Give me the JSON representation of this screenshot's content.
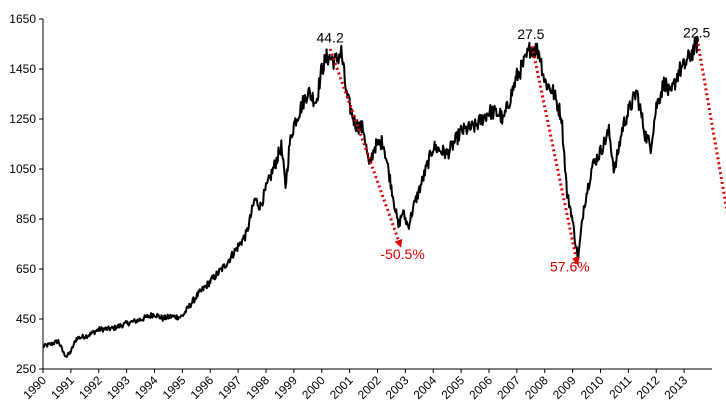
{
  "chart_data": {
    "type": "line",
    "ylim": [
      250,
      1650
    ],
    "xlim": [
      1990,
      2014
    ],
    "y_ticks": [
      "250",
      "450",
      "650",
      "850",
      "1050",
      "1250",
      "1450",
      "1650"
    ],
    "x_ticks": [
      "1990",
      "1991",
      "1992",
      "1993",
      "1994",
      "1995",
      "1996",
      "1997",
      "1998",
      "1999",
      "2000",
      "2001",
      "2002",
      "2003",
      "2004",
      "2005",
      "2006",
      "2007",
      "2008",
      "2009",
      "2010",
      "2011",
      "2012",
      "2013"
    ],
    "grid": false,
    "series": [
      {
        "color": "#000000",
        "points": [
          [
            1990.0,
            340
          ],
          [
            1990.3,
            350
          ],
          [
            1990.55,
            362
          ],
          [
            1990.75,
            312
          ],
          [
            1990.85,
            300
          ],
          [
            1991.0,
            320
          ],
          [
            1991.2,
            372
          ],
          [
            1991.6,
            384
          ],
          [
            1992.0,
            408
          ],
          [
            1992.5,
            412
          ],
          [
            1993.0,
            432
          ],
          [
            1993.5,
            448
          ],
          [
            1994.0,
            470
          ],
          [
            1994.3,
            452
          ],
          [
            1994.6,
            460
          ],
          [
            1994.9,
            458
          ],
          [
            1995.0,
            462
          ],
          [
            1995.5,
            540
          ],
          [
            1996.0,
            600
          ],
          [
            1996.5,
            660
          ],
          [
            1997.0,
            740
          ],
          [
            1997.3,
            790
          ],
          [
            1997.6,
            930
          ],
          [
            1997.8,
            900
          ],
          [
            1998.0,
            970
          ],
          [
            1998.55,
            1140
          ],
          [
            1998.7,
            980
          ],
          [
            1998.85,
            1150
          ],
          [
            1999.0,
            1230
          ],
          [
            1999.5,
            1360
          ],
          [
            1999.8,
            1320
          ],
          [
            2000.0,
            1450
          ],
          [
            2000.2,
            1500
          ],
          [
            2000.5,
            1480
          ],
          [
            2000.7,
            1520
          ],
          [
            2000.9,
            1340
          ],
          [
            2001.2,
            1230
          ],
          [
            2001.5,
            1210
          ],
          [
            2001.7,
            1060
          ],
          [
            2001.9,
            1140
          ],
          [
            2002.2,
            1160
          ],
          [
            2002.5,
            980
          ],
          [
            2002.75,
            820
          ],
          [
            2002.9,
            880
          ],
          [
            2003.1,
            820
          ],
          [
            2003.3,
            900
          ],
          [
            2003.6,
            1000
          ],
          [
            2004.0,
            1140
          ],
          [
            2004.5,
            1110
          ],
          [
            2005.0,
            1200
          ],
          [
            2005.5,
            1220
          ],
          [
            2006.0,
            1280
          ],
          [
            2006.4,
            1270
          ],
          [
            2006.5,
            1240
          ],
          [
            2007.0,
            1420
          ],
          [
            2007.3,
            1480
          ],
          [
            2007.5,
            1540
          ],
          [
            2007.8,
            1520
          ],
          [
            2008.0,
            1400
          ],
          [
            2008.3,
            1360
          ],
          [
            2008.6,
            1260
          ],
          [
            2008.8,
            950
          ],
          [
            2008.95,
            880
          ],
          [
            2009.1,
            760
          ],
          [
            2009.2,
            690
          ],
          [
            2009.4,
            900
          ],
          [
            2009.7,
            1060
          ],
          [
            2010.0,
            1120
          ],
          [
            2010.3,
            1200
          ],
          [
            2010.5,
            1040
          ],
          [
            2010.8,
            1220
          ],
          [
            2011.0,
            1280
          ],
          [
            2011.3,
            1360
          ],
          [
            2011.6,
            1190
          ],
          [
            2011.8,
            1140
          ],
          [
            2012.0,
            1300
          ],
          [
            2012.3,
            1400
          ],
          [
            2012.5,
            1340
          ],
          [
            2012.8,
            1440
          ],
          [
            2013.0,
            1460
          ],
          [
            2013.3,
            1520
          ],
          [
            2013.5,
            1560
          ]
        ]
      }
    ],
    "annotations": {
      "peaks": [
        {
          "label": "44.2",
          "x": 2000.3,
          "y": 1540
        },
        {
          "label": "27.5",
          "x": 2007.5,
          "y": 1555
        },
        {
          "label": "22.5",
          "x": 2013.45,
          "y": 1560
        }
      ],
      "drops": [
        {
          "label": "-50.5%",
          "from": [
            2000.3,
            1530
          ],
          "to": [
            2002.8,
            750
          ],
          "label_at": [
            2002.9,
            690
          ]
        },
        {
          "label": "57.6%",
          "from": [
            2007.55,
            1540
          ],
          "to": [
            2009.15,
            680
          ],
          "label_at": [
            2008.9,
            640
          ]
        },
        {
          "label": "",
          "from": [
            2013.5,
            1550
          ],
          "to": [
            2014.9,
            650
          ],
          "label_at": null
        }
      ]
    }
  }
}
